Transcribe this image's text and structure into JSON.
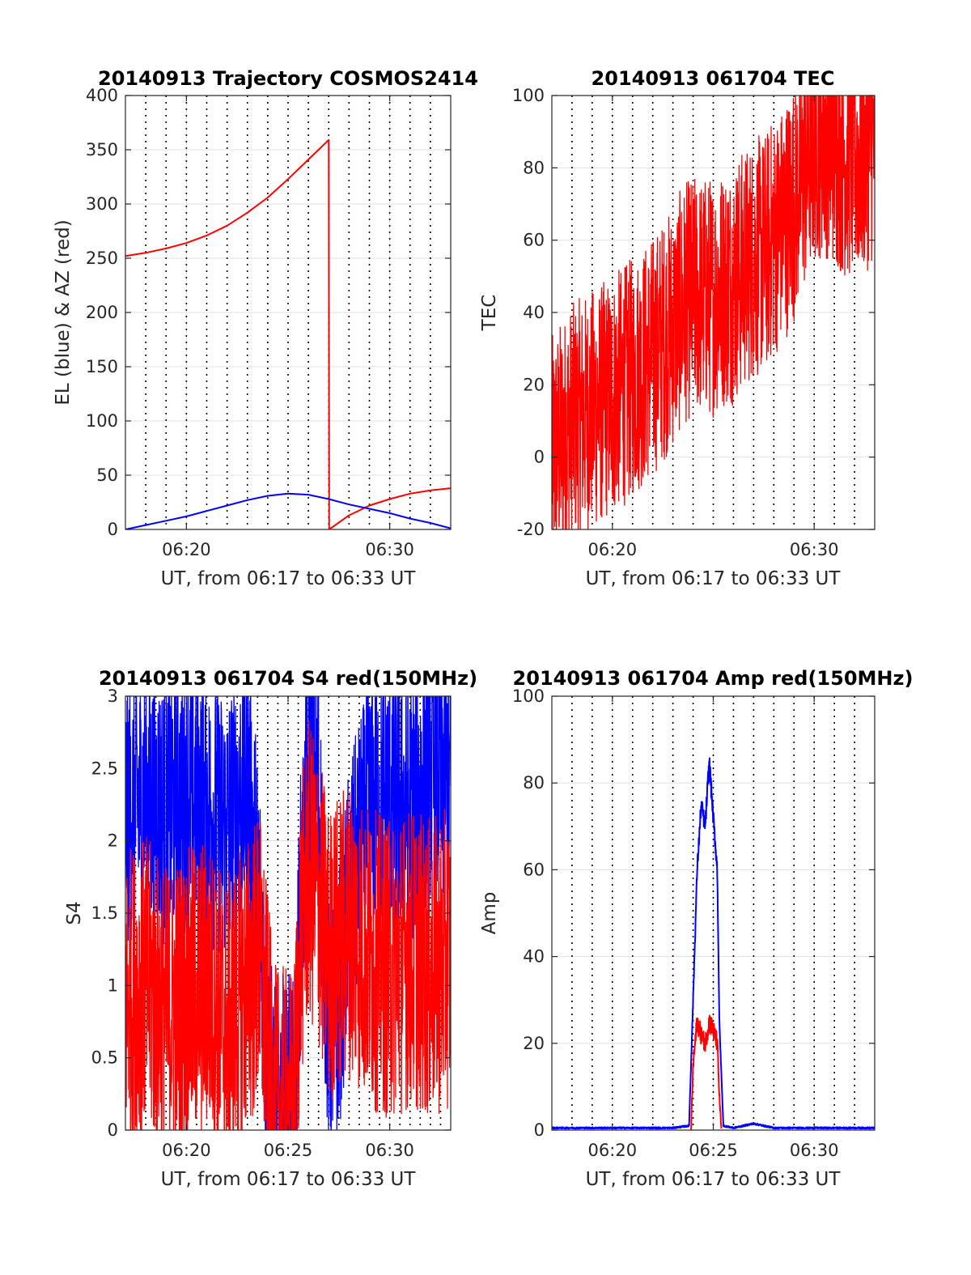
{
  "chart_data": [
    {
      "type": "line",
      "title": "20140913 Trajectory COSMOS2414",
      "xlabel": "UT, from 06:17 to 06:33 UT",
      "ylabel": "EL (blue) & AZ (red)",
      "xlim": [
        377,
        393
      ],
      "ylim": [
        0,
        400
      ],
      "xticks": [
        380,
        390
      ],
      "xticklabels": [
        "06:20",
        "06:30"
      ],
      "yticks": [
        0,
        50,
        100,
        150,
        200,
        250,
        300,
        350,
        400
      ],
      "yticklabels": [
        "0",
        "50",
        "100",
        "150",
        "200",
        "250",
        "300",
        "350",
        "400"
      ],
      "grid": true,
      "minor_vlines": [
        378,
        379,
        380,
        381,
        382,
        383,
        384,
        385,
        386,
        387,
        388,
        389,
        390,
        391,
        392
      ],
      "series": [
        {
          "color": "#ff0000",
          "noise": 0,
          "x": [
            377,
            378,
            379,
            380,
            381,
            382,
            383,
            384,
            385,
            386,
            387,
            387.02,
            388,
            389,
            390,
            391,
            392,
            393
          ],
          "y": [
            252,
            255,
            259,
            264,
            271,
            280,
            292,
            306,
            323,
            341,
            359,
            0,
            13,
            22,
            28,
            33,
            36,
            38
          ]
        },
        {
          "color": "#0000ff",
          "noise": 0,
          "x": [
            377,
            378,
            379,
            380,
            381,
            382,
            383,
            384,
            385,
            386,
            387,
            388,
            389,
            390,
            391,
            392,
            393
          ],
          "y": [
            0,
            4,
            8,
            12,
            17,
            22,
            27,
            31,
            33,
            32,
            28,
            23,
            19,
            15,
            10,
            6,
            1
          ]
        }
      ]
    },
    {
      "type": "line",
      "title": "20140913 061704 TEC",
      "xlabel": "UT, from 06:17 to 06:33 UT",
      "ylabel": "TEC",
      "xlim": [
        377,
        393
      ],
      "ylim": [
        -20,
        100
      ],
      "xticks": [
        380,
        390
      ],
      "xticklabels": [
        "06:20",
        "06:30"
      ],
      "yticks": [
        -20,
        0,
        20,
        40,
        60,
        80,
        100
      ],
      "yticklabels": [
        "-20",
        "0",
        "20",
        "40",
        "60",
        "80",
        "100"
      ],
      "grid": true,
      "minor_vlines": [
        378,
        379,
        380,
        381,
        382,
        383,
        384,
        385,
        386,
        387,
        388,
        389,
        390,
        391,
        392
      ],
      "series": [
        {
          "color": "#ff0000",
          "noise": 0.8,
          "x": [
            377,
            377.5,
            378,
            379,
            380,
            381,
            382,
            383,
            383.5,
            384,
            385,
            385.5,
            386,
            386.5,
            387,
            387.5,
            388,
            388.5,
            389,
            389.5,
            390,
            390.5,
            391,
            391.5,
            392,
            392.5,
            393
          ],
          "y": [
            0,
            5,
            9,
            13,
            17,
            22,
            28,
            36,
            42,
            44.5,
            44.5,
            47,
            48,
            52,
            55,
            56,
            61,
            65,
            71,
            79,
            87,
            89,
            86,
            83,
            82,
            84,
            88
          ]
        }
      ]
    },
    {
      "type": "line",
      "title": "20140913 061704 S4 red(150MHz)",
      "xlabel": "UT, from 06:17 to 06:33 UT",
      "ylabel": "S4",
      "xlim": [
        377,
        393
      ],
      "ylim": [
        0,
        3
      ],
      "xticks": [
        380,
        385,
        390
      ],
      "xticklabels": [
        "06:20",
        "06:25",
        "06:30"
      ],
      "yticks": [
        0,
        0.5,
        1,
        1.5,
        2,
        2.5,
        3
      ],
      "yticklabels": [
        "0",
        "0.5",
        "1",
        "1.5",
        "2",
        "2.5",
        "3"
      ],
      "grid": true,
      "minor_vlines": [
        377.5,
        378,
        378.5,
        379,
        379.5,
        380,
        380.5,
        381,
        381.5,
        382,
        382.5,
        383,
        383.5,
        384,
        384.5,
        385,
        385.5,
        386,
        386.5,
        387,
        387.5,
        388,
        388.5,
        389,
        389.5,
        390,
        390.5,
        391,
        391.5,
        392,
        392.5
      ],
      "series": [
        {
          "color": "#0000ff",
          "noise": 0.9,
          "x": [
            377,
            378,
            379,
            380,
            381,
            382,
            383,
            383.6,
            384,
            384.3,
            385,
            385.3,
            385.6,
            386,
            386.5,
            387,
            387.5,
            388,
            389,
            390,
            391,
            392,
            393
          ],
          "y": [
            2.2,
            2.3,
            2.2,
            2.3,
            2.2,
            2.1,
            2.4,
            1.6,
            0.4,
            0.12,
            0.15,
            0.1,
            1.5,
            2.4,
            2.3,
            0.7,
            0.9,
            1.6,
            2.2,
            2.3,
            2.2,
            2.5,
            2.4
          ]
        },
        {
          "color": "#ff0000",
          "noise": 1.0,
          "x": [
            377,
            378,
            379,
            380,
            381,
            382,
            383,
            383.6,
            384,
            384.3,
            385,
            385.3,
            385.6,
            386,
            386.5,
            387,
            387.5,
            388,
            389,
            390,
            391,
            392,
            393
          ],
          "y": [
            0.9,
            1.0,
            0.8,
            0.9,
            1.0,
            0.7,
            1.0,
            1.2,
            0.6,
            0.1,
            0.08,
            0.1,
            1.3,
            1.8,
            1.6,
            1.2,
            1.3,
            1.4,
            1.2,
            1.1,
            1.2,
            1.1,
            1.2
          ]
        }
      ]
    },
    {
      "type": "line",
      "title": "20140913 061704 Amp red(150MHz)",
      "xlabel": "UT, from 06:17 to 06:33 UT",
      "ylabel": "Amp",
      "xlim": [
        377,
        393
      ],
      "ylim": [
        0,
        100
      ],
      "xticks": [
        380,
        385,
        390
      ],
      "xticklabels": [
        "06:20",
        "06:25",
        "06:30"
      ],
      "yticks": [
        0,
        20,
        40,
        60,
        80,
        100
      ],
      "yticklabels": [
        "0",
        "20",
        "40",
        "60",
        "80",
        "100"
      ],
      "grid": true,
      "minor_vlines": [
        378,
        379,
        380,
        381,
        382,
        383,
        384,
        385,
        386,
        387,
        388,
        389,
        390,
        391,
        392
      ],
      "series": [
        {
          "color": "#0000ff",
          "noise": 0.08,
          "x": [
            377,
            380,
            383,
            383.8,
            384.0,
            384.2,
            384.4,
            384.6,
            384.8,
            385.0,
            385.2,
            385.3,
            385.5,
            386,
            387,
            387.5,
            388,
            390,
            393
          ],
          "y": [
            0.5,
            0.5,
            0.5,
            1,
            30,
            60,
            75,
            70,
            85,
            72,
            60,
            25,
            1,
            0.5,
            1.5,
            1,
            0.5,
            0.5,
            0.5
          ]
        },
        {
          "color": "#ff0000",
          "noise": 0.25,
          "x": [
            383.9,
            384.0,
            384.2,
            384.4,
            384.6,
            384.8,
            385.0,
            385.2,
            385.3,
            385.4
          ],
          "y": [
            0,
            15,
            25,
            22,
            20,
            25,
            23,
            20,
            8,
            0
          ]
        }
      ]
    }
  ]
}
